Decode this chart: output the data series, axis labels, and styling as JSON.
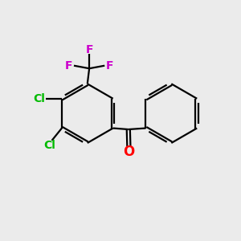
{
  "background_color": "#ebebeb",
  "bond_color": "#000000",
  "cl_color": "#00bb00",
  "f_color": "#cc00cc",
  "o_color": "#ff0000",
  "line_width": 1.6,
  "figsize": [
    3.0,
    3.0
  ],
  "dpi": 100,
  "xlim": [
    0,
    10
  ],
  "ylim": [
    0,
    10
  ]
}
